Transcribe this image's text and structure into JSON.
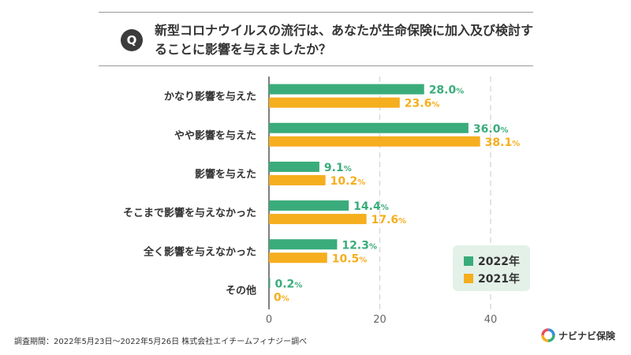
{
  "question": {
    "badge": "Q",
    "text": "新型コロナウイルスの流行は、あなたが生命保険に加入及び検討することに影響を与えましたか？"
  },
  "chart_data": {
    "type": "bar",
    "orientation": "horizontal",
    "categories": [
      "かなり影響を与えた",
      "やや影響を与えた",
      "影響を与えた",
      "そこまで影響を与えなかった",
      "全く影響を与えなかった",
      "その他"
    ],
    "series": [
      {
        "name": "2022年",
        "color": "#3aac7b",
        "values": [
          28.0,
          36.0,
          9.1,
          14.4,
          12.3,
          0.2
        ],
        "labels": [
          "28.0",
          "36.0",
          "9.1",
          "14.4",
          "12.3",
          "0.2"
        ]
      },
      {
        "name": "2021年",
        "color": "#f5ae1e",
        "values": [
          23.6,
          38.1,
          10.2,
          17.6,
          10.5,
          0
        ],
        "labels": [
          "23.6",
          "38.1",
          "10.2",
          "17.6",
          "10.5",
          "0"
        ]
      }
    ],
    "unit": "%",
    "xlim": [
      0,
      40
    ],
    "xticks": [
      0,
      20,
      40
    ],
    "grid": true,
    "legend": "bottom-right"
  },
  "legend": {
    "items": [
      "2022年",
      "2021年"
    ]
  },
  "footnote": "調査期間：2022年5月23日〜2022年5月26日 株式会社エイチームフィナジー調べ",
  "logo": {
    "text": "ナビナビ保険"
  }
}
